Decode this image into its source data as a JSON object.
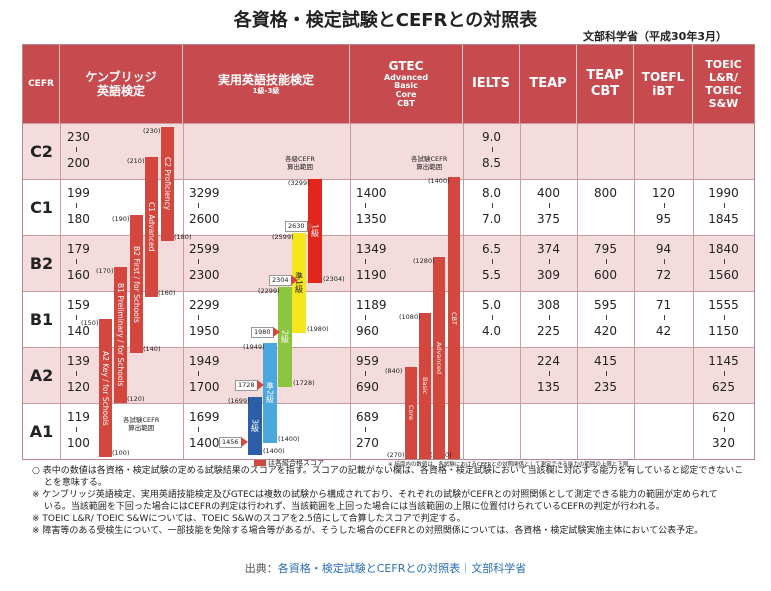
{
  "title": "各資格・検定試験とCEFRとの対照表",
  "subtitle": "文部科学省（平成30年3月）",
  "headers": {
    "cefr": "CEFR",
    "cambridge": "ケンブリッジ\n英語検定",
    "eiken": "実用英語技能検定",
    "eiken_sub": "1級-3級",
    "gtec": "GTEC",
    "gtec_sub": "Advanced\nBasic\nCore\nCBT",
    "ielts": "IELTS",
    "teap": "TEAP",
    "teap_cbt": "TEAP\nCBT",
    "toefl": "TOEFL\niBT",
    "toeic": "TOEIC\nL&R/\nTOEIC\nS&W"
  },
  "levels": [
    "C2",
    "C1",
    "B2",
    "B1",
    "A2",
    "A1"
  ],
  "cambridge_scores": [
    [
      "230",
      "200"
    ],
    [
      "199",
      "180"
    ],
    [
      "179",
      "160"
    ],
    [
      "159",
      "140"
    ],
    [
      "139",
      "120"
    ],
    [
      "119",
      "100"
    ]
  ],
  "cambridge_bars": [
    {
      "label": "C2 Proficiency",
      "top": "(230)",
      "bottom": "(180)"
    },
    {
      "label": "C1 Advanced",
      "top": "(210)",
      "bottom": "(160)"
    },
    {
      "label": "B2 First / for Schools",
      "top": "(190)",
      "bottom": "(140)"
    },
    {
      "label": "B1 Preliminary / for Schools",
      "top": "(170)",
      "bottom": "(120)"
    },
    {
      "label": "A2 Key / for Schools",
      "top": "(150)",
      "bottom": "(100)"
    }
  ],
  "cambridge_note": "各試験CEFR\n算出範囲",
  "eiken_scores": [
    [
      "",
      ""
    ],
    [
      "3299",
      "2600"
    ],
    [
      "2599",
      "2300"
    ],
    [
      "2299",
      "1950"
    ],
    [
      "1949",
      "1700"
    ],
    [
      "1699",
      "1400"
    ]
  ],
  "eiken_note": "各級CEFR\n算出範囲",
  "eiken_bars": [
    {
      "label": "1級",
      "top": "(3299)",
      "bottom": "(2304)",
      "pass": "2630"
    },
    {
      "label": "準1級",
      "top": "(2599)",
      "bottom": "(1980)",
      "pass": "2304"
    },
    {
      "label": "2級",
      "top": "(2299)",
      "bottom": "(1728)",
      "pass": "1980"
    },
    {
      "label": "準2級",
      "top": "(1949)",
      "bottom": "(1400)",
      "pass": "1728"
    },
    {
      "label": "3級",
      "top": "(1699)",
      "bottom": "(1400)",
      "pass": "1456"
    }
  ],
  "gtec_scores": [
    [
      "",
      ""
    ],
    [
      "1400",
      "1350"
    ],
    [
      "1349",
      "1190"
    ],
    [
      "1189",
      "960"
    ],
    [
      "959",
      "690"
    ],
    [
      "689",
      "270"
    ]
  ],
  "gtec_note": "各試験CEFR\n算出範囲",
  "gtec_bars": [
    {
      "label": "CBT",
      "top": "(1400)",
      "bottom": "(1400)"
    },
    {
      "label": "Advanced",
      "top": "(1280)",
      "bottom": ""
    },
    {
      "label": "Basic",
      "top": "(1080)",
      "bottom": ""
    },
    {
      "label": "Core",
      "top": "(840)",
      "bottom": "(270)"
    }
  ],
  "ielts": [
    [
      "9.0",
      "8.5"
    ],
    [
      "8.0",
      "7.0"
    ],
    [
      "6.5",
      "5.5"
    ],
    [
      "5.0",
      "4.0"
    ],
    [
      "",
      ""
    ],
    [
      "",
      ""
    ]
  ],
  "teap": [
    [
      "",
      ""
    ],
    [
      "400",
      "375"
    ],
    [
      "374",
      "309"
    ],
    [
      "308",
      "225"
    ],
    [
      "224",
      "135"
    ],
    [
      "",
      ""
    ]
  ],
  "teap_cbt": [
    [
      "",
      ""
    ],
    [
      "800",
      ""
    ],
    [
      "795",
      "600"
    ],
    [
      "595",
      "420"
    ],
    [
      "415",
      "235"
    ],
    [
      "",
      ""
    ]
  ],
  "toefl": [
    [
      "",
      ""
    ],
    [
      "120",
      "95"
    ],
    [
      "94",
      "72"
    ],
    [
      "71",
      "42"
    ],
    [
      "",
      ""
    ],
    [
      "",
      ""
    ]
  ],
  "toeic": [
    [
      "",
      ""
    ],
    [
      "1990",
      "1845"
    ],
    [
      "1840",
      "1560"
    ],
    [
      "1555",
      "1150"
    ],
    [
      "1145",
      "625"
    ],
    [
      "620",
      "320"
    ]
  ],
  "legend": "は各級合格スコア",
  "gtec_footnote": "※ 括弧内の数値は、各試験におけるCEFRとの対照関係として測定できる能力の範囲の上限と下限",
  "notes": [
    "○ 表中の数値は各資格・検定試験の定める試験結果のスコアを指す。スコアの記載がない欄は、各資格・検定試験において当該欄に対応する能力を有していると認定できないこ",
    "　 とを意味する。",
    "※ ケンブリッジ英語検定、実用英語技能検定及びGTECは複数の試験から構成されており、それぞれの試験がCEFRとの対照関係として測定できる能力の範囲が定められて",
    "　 いる。当該範囲を下回った場合にはCEFRの判定は行われず、当該範囲を上回った場合には当該範囲の上限に位置付けられているCEFRの判定が行われる。",
    "※ TOEIC L&R/ TOEIC S&Wについては、TOEIC S&Wのスコアを2.5倍にして合算したスコアで判定する。",
    "※ 障害等のある受検生について、一部技能を免除する場合等があるが、そうした場合のCEFRとの対照関係については、各資格・検定試験実施主体において公表予定。"
  ],
  "source_label": "出典：",
  "source_link": "各資格・検定試験とCEFRとの対照表｜文部科学省",
  "colors": {
    "header": "#c74a4f",
    "band": "#f4dcdd",
    "bar_red": "#d4473f",
    "eiken_1": "#e2261b",
    "eiken_p1": "#f5e61e",
    "eiken_2": "#8cc63f",
    "eiken_p2": "#4aa8df",
    "eiken_3": "#2b5ea7"
  }
}
